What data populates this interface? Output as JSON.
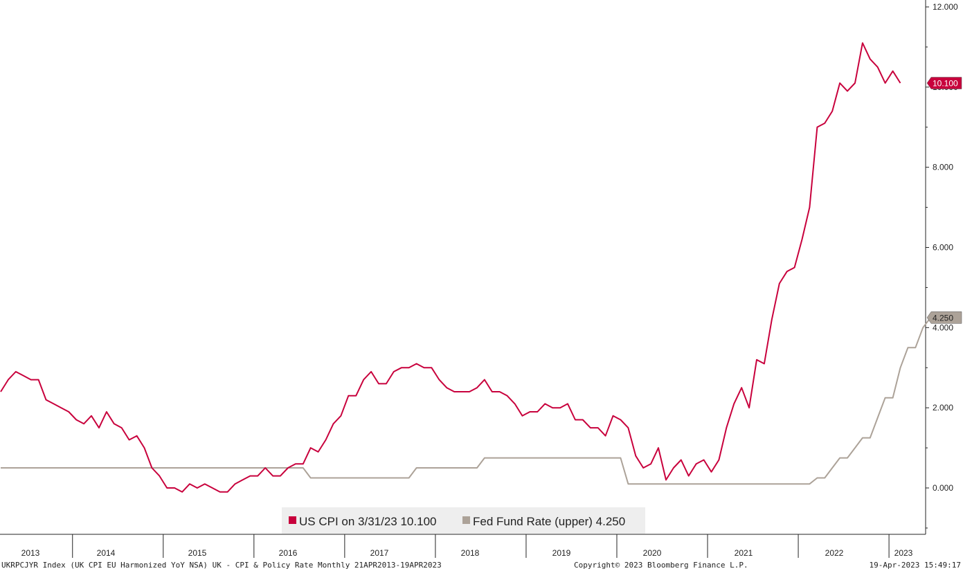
{
  "chart_data": {
    "type": "line",
    "x_start": "2013-04",
    "y_range": [
      -1,
      12
    ],
    "y_ticks": [
      "12.000",
      "10.000",
      "8.000",
      "6.000",
      "4.000",
      "2.000",
      "0.000"
    ],
    "y_tick_values": [
      12,
      10,
      8,
      6,
      4,
      2,
      0
    ],
    "x_year_labels": [
      "2013",
      "2014",
      "2015",
      "2016",
      "2017",
      "2018",
      "2019",
      "2020",
      "2021",
      "2022",
      "2023"
    ],
    "legend_position": "bottom-center",
    "grid": false,
    "series": [
      {
        "name": "US CPI on 3/31/23 10.100",
        "color": "#c8003c",
        "last_value_label": "10.100",
        "values": [
          2.4,
          2.7,
          2.9,
          2.8,
          2.7,
          2.7,
          2.2,
          2.1,
          2.0,
          1.9,
          1.7,
          1.6,
          1.8,
          1.5,
          1.9,
          1.6,
          1.5,
          1.2,
          1.3,
          1.0,
          0.5,
          0.3,
          0.0,
          0.0,
          -0.1,
          0.1,
          0.0,
          0.1,
          0.0,
          -0.1,
          -0.1,
          0.1,
          0.2,
          0.3,
          0.3,
          0.5,
          0.3,
          0.3,
          0.5,
          0.6,
          0.6,
          1.0,
          0.9,
          1.2,
          1.6,
          1.8,
          2.3,
          2.3,
          2.7,
          2.9,
          2.6,
          2.6,
          2.9,
          3.0,
          3.0,
          3.1,
          3.0,
          3.0,
          2.7,
          2.5,
          2.4,
          2.4,
          2.4,
          2.5,
          2.7,
          2.4,
          2.4,
          2.3,
          2.1,
          1.8,
          1.9,
          1.9,
          2.1,
          2.0,
          2.0,
          2.1,
          1.7,
          1.7,
          1.5,
          1.5,
          1.3,
          1.8,
          1.7,
          1.5,
          0.8,
          0.5,
          0.6,
          1.0,
          0.2,
          0.5,
          0.7,
          0.3,
          0.6,
          0.7,
          0.4,
          0.7,
          1.5,
          2.1,
          2.5,
          2.0,
          3.2,
          3.1,
          4.2,
          5.1,
          5.4,
          5.5,
          6.2,
          7.0,
          9.0,
          9.1,
          9.4,
          10.1,
          9.9,
          10.1,
          11.1,
          10.7,
          10.5,
          10.1,
          10.4,
          10.1
        ]
      },
      {
        "name": "Fed Fund Rate (upper) 4.250",
        "color": "#aca298",
        "last_value_label": "4.250",
        "values": [
          0.5,
          0.5,
          0.5,
          0.5,
          0.5,
          0.5,
          0.5,
          0.5,
          0.5,
          0.5,
          0.5,
          0.5,
          0.5,
          0.5,
          0.5,
          0.5,
          0.5,
          0.5,
          0.5,
          0.5,
          0.5,
          0.5,
          0.5,
          0.5,
          0.5,
          0.5,
          0.5,
          0.5,
          0.5,
          0.5,
          0.5,
          0.5,
          0.5,
          0.5,
          0.5,
          0.5,
          0.5,
          0.5,
          0.5,
          0.5,
          0.5,
          0.25,
          0.25,
          0.25,
          0.25,
          0.25,
          0.25,
          0.25,
          0.25,
          0.25,
          0.25,
          0.25,
          0.25,
          0.25,
          0.25,
          0.5,
          0.5,
          0.5,
          0.5,
          0.5,
          0.5,
          0.5,
          0.5,
          0.5,
          0.75,
          0.75,
          0.75,
          0.75,
          0.75,
          0.75,
          0.75,
          0.75,
          0.75,
          0.75,
          0.75,
          0.75,
          0.75,
          0.75,
          0.75,
          0.75,
          0.75,
          0.75,
          0.75,
          0.1,
          0.1,
          0.1,
          0.1,
          0.1,
          0.1,
          0.1,
          0.1,
          0.1,
          0.1,
          0.1,
          0.1,
          0.1,
          0.1,
          0.1,
          0.1,
          0.1,
          0.1,
          0.1,
          0.1,
          0.1,
          0.1,
          0.1,
          0.1,
          0.1,
          0.25,
          0.25,
          0.5,
          0.75,
          0.75,
          1.0,
          1.25,
          1.25,
          1.75,
          2.25,
          2.25,
          3.0,
          3.5,
          3.5,
          4.0,
          4.25,
          4.25
        ]
      }
    ]
  },
  "footer": {
    "left": "UKRPCJYR Index (UK CPI EU Harmonized YoY NSA) UK - CPI & Policy Rate  Monthly 21APR2013-19APR2023",
    "center": "Copyright© 2023 Bloomberg Finance L.P.",
    "right": "19-Apr-2023 15:49:17"
  }
}
